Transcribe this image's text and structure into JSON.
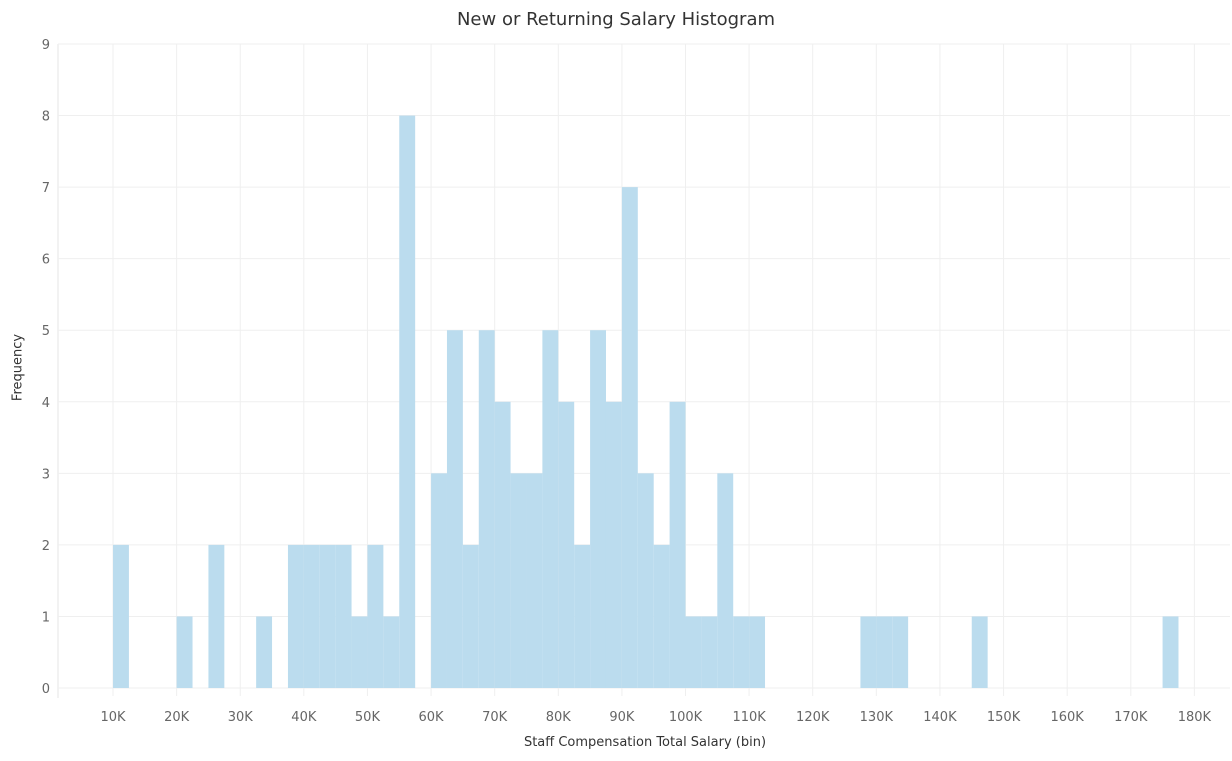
{
  "chart_data": {
    "type": "bar",
    "title": "New or Returning Salary Histogram",
    "xlabel": "Staff Compensation Total Salary (bin)",
    "ylabel": "Frequency",
    "bin_size_k": 2.5,
    "bins": [
      {
        "start_k": 10,
        "count": 2
      },
      {
        "start_k": 20,
        "count": 1
      },
      {
        "start_k": 25,
        "count": 2
      },
      {
        "start_k": 32.5,
        "count": 1
      },
      {
        "start_k": 37.5,
        "count": 2
      },
      {
        "start_k": 40,
        "count": 2
      },
      {
        "start_k": 42.5,
        "count": 2
      },
      {
        "start_k": 45,
        "count": 2
      },
      {
        "start_k": 47.5,
        "count": 1
      },
      {
        "start_k": 50,
        "count": 2
      },
      {
        "start_k": 52.5,
        "count": 1
      },
      {
        "start_k": 55,
        "count": 8
      },
      {
        "start_k": 60,
        "count": 3
      },
      {
        "start_k": 62.5,
        "count": 5
      },
      {
        "start_k": 65,
        "count": 2
      },
      {
        "start_k": 67.5,
        "count": 5
      },
      {
        "start_k": 70,
        "count": 4
      },
      {
        "start_k": 72.5,
        "count": 3
      },
      {
        "start_k": 75,
        "count": 3
      },
      {
        "start_k": 77.5,
        "count": 5
      },
      {
        "start_k": 80,
        "count": 4
      },
      {
        "start_k": 82.5,
        "count": 2
      },
      {
        "start_k": 85,
        "count": 5
      },
      {
        "start_k": 87.5,
        "count": 4
      },
      {
        "start_k": 90,
        "count": 7
      },
      {
        "start_k": 92.5,
        "count": 3
      },
      {
        "start_k": 95,
        "count": 2
      },
      {
        "start_k": 97.5,
        "count": 4
      },
      {
        "start_k": 100,
        "count": 1
      },
      {
        "start_k": 102.5,
        "count": 1
      },
      {
        "start_k": 105,
        "count": 3
      },
      {
        "start_k": 107.5,
        "count": 1
      },
      {
        "start_k": 110,
        "count": 1
      },
      {
        "start_k": 127.5,
        "count": 1
      },
      {
        "start_k": 130,
        "count": 1
      },
      {
        "start_k": 132.5,
        "count": 1
      },
      {
        "start_k": 145,
        "count": 1
      },
      {
        "start_k": 175,
        "count": 1
      }
    ],
    "x_ticks": [
      "10K",
      "20K",
      "30K",
      "40K",
      "50K",
      "60K",
      "70K",
      "80K",
      "90K",
      "100K",
      "110K",
      "120K",
      "130K",
      "140K",
      "150K",
      "160K",
      "170K",
      "180K"
    ],
    "x_tick_values_k": [
      10,
      20,
      30,
      40,
      50,
      60,
      70,
      80,
      90,
      100,
      110,
      120,
      130,
      140,
      150,
      160,
      170,
      180
    ],
    "y_ticks": [
      "0",
      "1",
      "2",
      "3",
      "4",
      "5",
      "6",
      "7",
      "8",
      "9"
    ],
    "xlim_k": [
      1.35,
      185.6
    ],
    "ylim": [
      0,
      9
    ],
    "grid": true,
    "bar_color": "#bbdcee"
  }
}
